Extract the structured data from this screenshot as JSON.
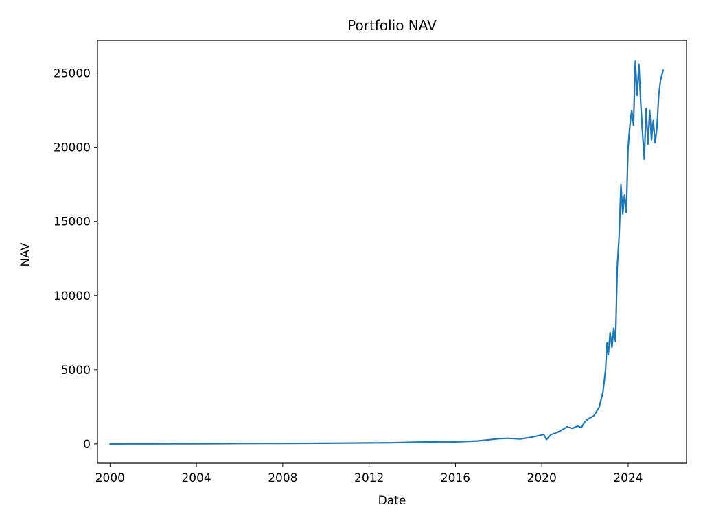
{
  "chart_data": {
    "type": "line",
    "title": "Portfolio NAV",
    "xlabel": "Date",
    "ylabel": "NAV",
    "xlim": [
      "1999-06-01",
      "2026-09-15"
    ],
    "ylim": [
      -1300,
      27200
    ],
    "x_ticks": [
      "2000",
      "2004",
      "2008",
      "2012",
      "2016",
      "2020",
      "2024"
    ],
    "y_ticks": [
      0,
      5000,
      10000,
      15000,
      20000,
      25000
    ],
    "grid": false,
    "legend": "none",
    "colors": {
      "line": "#1f77b4"
    },
    "series": [
      {
        "points": [
          [
            "2000-01-01",
            0
          ],
          [
            "2001-01-01",
            3
          ],
          [
            "2002-01-01",
            6
          ],
          [
            "2003-01-01",
            10
          ],
          [
            "2004-01-01",
            15
          ],
          [
            "2005-01-01",
            20
          ],
          [
            "2006-01-01",
            27
          ],
          [
            "2007-01-01",
            33
          ],
          [
            "2008-01-01",
            38
          ],
          [
            "2009-01-01",
            40
          ],
          [
            "2010-01-01",
            48
          ],
          [
            "2011-01-01",
            58
          ],
          [
            "2012-01-01",
            68
          ],
          [
            "2013-01-01",
            80
          ],
          [
            "2013-12-01",
            110
          ],
          [
            "2014-06-01",
            125
          ],
          [
            "2015-01-01",
            135
          ],
          [
            "2015-06-01",
            150
          ],
          [
            "2016-01-01",
            140
          ],
          [
            "2016-06-01",
            160
          ],
          [
            "2017-01-01",
            200
          ],
          [
            "2017-06-01",
            260
          ],
          [
            "2018-01-01",
            350
          ],
          [
            "2018-06-01",
            380
          ],
          [
            "2019-01-01",
            340
          ],
          [
            "2019-06-01",
            420
          ],
          [
            "2019-12-01",
            580
          ],
          [
            "2020-02-01",
            650
          ],
          [
            "2020-03-20",
            300
          ],
          [
            "2020-06-01",
            620
          ],
          [
            "2020-10-01",
            800
          ],
          [
            "2021-01-01",
            1000
          ],
          [
            "2021-03-01",
            1150
          ],
          [
            "2021-06-01",
            1050
          ],
          [
            "2021-09-01",
            1200
          ],
          [
            "2021-11-01",
            1100
          ],
          [
            "2022-01-01",
            1500
          ],
          [
            "2022-03-01",
            1700
          ],
          [
            "2022-06-01",
            1900
          ],
          [
            "2022-09-01",
            2500
          ],
          [
            "2022-11-01",
            3500
          ],
          [
            "2022-12-15",
            5000
          ],
          [
            "2023-01-10",
            6800
          ],
          [
            "2023-02-01",
            6000
          ],
          [
            "2023-03-01",
            7500
          ],
          [
            "2023-04-01",
            6500
          ],
          [
            "2023-05-01",
            7800
          ],
          [
            "2023-06-01",
            6900
          ],
          [
            "2023-07-01",
            12000
          ],
          [
            "2023-08-01",
            14000
          ],
          [
            "2023-09-01",
            17500
          ],
          [
            "2023-10-01",
            15500
          ],
          [
            "2023-11-01",
            16800
          ],
          [
            "2023-12-01",
            15600
          ],
          [
            "2024-01-01",
            20000
          ],
          [
            "2024-02-01",
            21500
          ],
          [
            "2024-03-01",
            22500
          ],
          [
            "2024-04-01",
            21500
          ],
          [
            "2024-05-01",
            25800
          ],
          [
            "2024-06-01",
            23500
          ],
          [
            "2024-07-01",
            25600
          ],
          [
            "2024-08-01",
            23000
          ],
          [
            "2024-09-01",
            21000
          ],
          [
            "2024-10-01",
            19200
          ],
          [
            "2024-11-01",
            22600
          ],
          [
            "2024-12-01",
            20200
          ],
          [
            "2025-01-01",
            22500
          ],
          [
            "2025-02-01",
            20500
          ],
          [
            "2025-03-01",
            21800
          ],
          [
            "2025-04-01",
            20300
          ],
          [
            "2025-05-01",
            21300
          ],
          [
            "2025-06-01",
            23500
          ],
          [
            "2025-07-01",
            24500
          ],
          [
            "2025-08-15",
            25200
          ]
        ]
      }
    ]
  }
}
